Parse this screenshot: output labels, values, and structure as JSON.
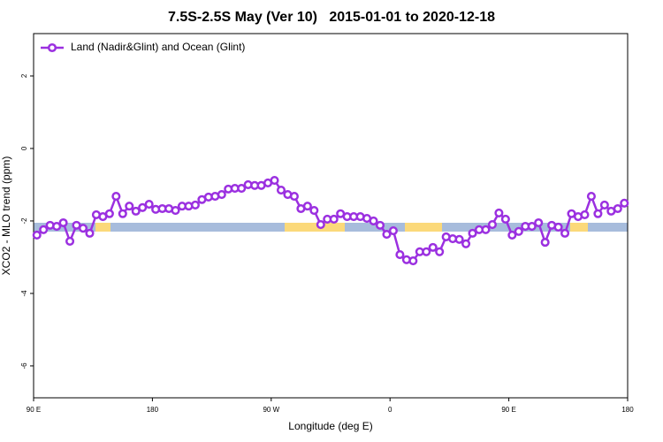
{
  "chart_data": {
    "type": "line",
    "title": "7.5S-2.5S May (Ver 10)   2015-01-01 to 2020-12-18",
    "x_label": "Longitude (deg E)",
    "y_label": "XCO2 - MLO trend (ppm)",
    "xlim": [
      90,
      540
    ],
    "ylim": [
      -6.88,
      3.17
    ],
    "xticks": [
      {
        "value": 90,
        "label": "90 E"
      },
      180,
      {
        "value": 270,
        "label": "90 W"
      },
      {
        "value": 360,
        "label": "0"
      },
      {
        "value": 450,
        "label": "90 E"
      },
      {
        "value": 540,
        "label": "180"
      }
    ],
    "yticks": [
      2,
      0,
      -2,
      -4,
      -6
    ],
    "legend": "top-left",
    "x": [
      92.5,
      97.5,
      102.5,
      107.5,
      112.5,
      117.5,
      122.5,
      127.5,
      132.5,
      137.5,
      142.5,
      147.5,
      152.5,
      157.5,
      162.5,
      167.5,
      172.5,
      177.5,
      182.5,
      187.5,
      192.5,
      197.5,
      202.5,
      207.5,
      212.5,
      217.5,
      222.5,
      227.5,
      232.5,
      237.5,
      242.5,
      247.5,
      252.5,
      257.5,
      262.5,
      267.5,
      272.5,
      277.5,
      282.5,
      287.5,
      292.5,
      297.5,
      302.5,
      307.5,
      312.5,
      317.5,
      322.5,
      327.5,
      332.5,
      337.5,
      342.5,
      347.5,
      352.5,
      357.5,
      362.5,
      367.5,
      372.5,
      377.5,
      382.5,
      387.5,
      392.5,
      397.5,
      402.5,
      407.5,
      412.5,
      417.5,
      422.5,
      427.5,
      432.5,
      437.5,
      442.5,
      447.5,
      452.5,
      457.5,
      462.5,
      467.5,
      472.5,
      477.5,
      482.5,
      487.5,
      492.5,
      497.5,
      502.5,
      507.5,
      512.5,
      517.5,
      522.5,
      527.5,
      532.5,
      537.5
    ],
    "series": [
      {
        "name": "Land (Nadir&Glint) and Ocean (Glint)",
        "color": "#9b30e0",
        "values": [
          -2.39,
          -2.24,
          -2.12,
          -2.15,
          -2.05,
          -2.56,
          -2.12,
          -2.2,
          -2.34,
          -1.83,
          -1.88,
          -1.8,
          -1.32,
          -1.8,
          -1.59,
          -1.73,
          -1.63,
          -1.54,
          -1.68,
          -1.66,
          -1.66,
          -1.71,
          -1.59,
          -1.59,
          -1.56,
          -1.41,
          -1.34,
          -1.32,
          -1.27,
          -1.12,
          -1.1,
          -1.1,
          -1.0,
          -1.02,
          -1.02,
          -0.95,
          -0.88,
          -1.15,
          -1.27,
          -1.32,
          -1.66,
          -1.59,
          -1.71,
          -2.1,
          -1.95,
          -1.95,
          -1.8,
          -1.88,
          -1.88,
          -1.88,
          -1.93,
          -2.0,
          -2.12,
          -2.37,
          -2.27,
          -2.93,
          -3.07,
          -3.1,
          -2.85,
          -2.85,
          -2.73,
          -2.85,
          -2.44,
          -2.49,
          -2.51,
          -2.63,
          -2.34,
          -2.24,
          -2.24,
          -2.1,
          -1.78,
          -1.95,
          -2.39,
          -2.29,
          -2.15,
          -2.15,
          -2.05,
          -2.59,
          -2.12,
          -2.17,
          -2.34,
          -1.8,
          -1.88,
          -1.83,
          -1.32,
          -1.8,
          -1.56,
          -1.73,
          -1.66,
          -1.51
        ]
      }
    ]
  }
}
